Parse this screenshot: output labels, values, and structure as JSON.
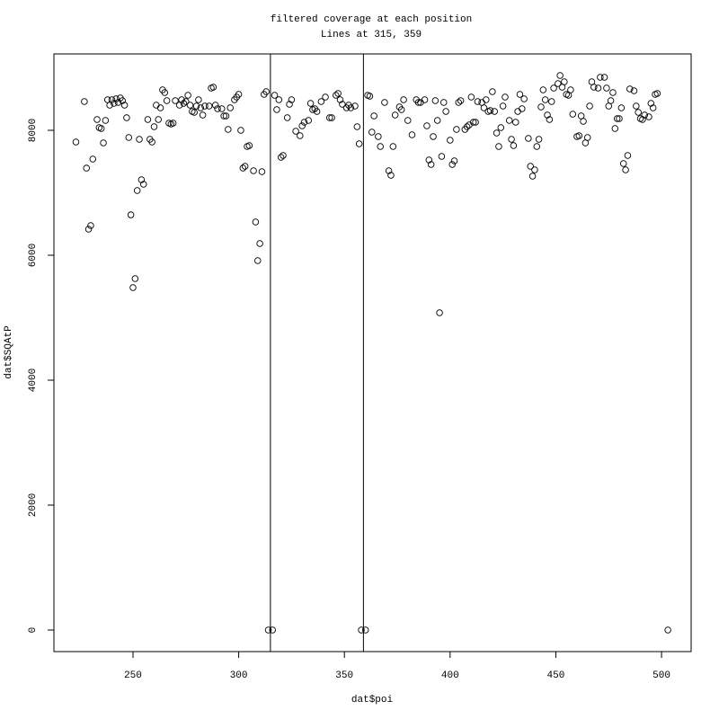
{
  "chart_data": {
    "type": "scatter",
    "title": "filtered coverage at each position",
    "subtitle": "Lines at 315, 359",
    "x_label": "dat$poi",
    "y_label": "dat$SQAtP",
    "color": "#000000",
    "vlines": [
      315,
      359
    ],
    "xlim": [
      212.6,
      514
    ],
    "ylim": [
      -345,
      9223
    ],
    "xticks": [
      250,
      300,
      350,
      400,
      450,
      500
    ],
    "yticks": [
      0,
      2000,
      4000,
      6000,
      8000
    ],
    "x": [
      223,
      227,
      228,
      229,
      230,
      231,
      233,
      234,
      235,
      236,
      237,
      238,
      239,
      240,
      241,
      242,
      243,
      244,
      245,
      246,
      247,
      248,
      249,
      250,
      251,
      252,
      253,
      254,
      255,
      257,
      258,
      259,
      260,
      261,
      262,
      263,
      264,
      265,
      266,
      267,
      268,
      269,
      270,
      272,
      273,
      274,
      275,
      276,
      277,
      278,
      279,
      280,
      281,
      282,
      283,
      284,
      286,
      287,
      288,
      289,
      290,
      292,
      293,
      294,
      295,
      296,
      298,
      299,
      300,
      301,
      302,
      303,
      304,
      305,
      307,
      308,
      309,
      310,
      311,
      312,
      313,
      314,
      316,
      317,
      318,
      319,
      320,
      321,
      323,
      324,
      325,
      327,
      329,
      330,
      331,
      333,
      334,
      335,
      336,
      337,
      339,
      341,
      343,
      344,
      346,
      347,
      348,
      349,
      351,
      352,
      353,
      355,
      356,
      357,
      358,
      360,
      361,
      362,
      363,
      364,
      366,
      367,
      369,
      371,
      372,
      373,
      374,
      376,
      377,
      378,
      380,
      382,
      384,
      385,
      386,
      388,
      389,
      390,
      391,
      392,
      393,
      394,
      395,
      396,
      397,
      398,
      400,
      401,
      402,
      403,
      404,
      405,
      407,
      408,
      409,
      410,
      411,
      412,
      413,
      415,
      416,
      417,
      418,
      419,
      420,
      421,
      422,
      423,
      424,
      425,
      426,
      428,
      429,
      430,
      431,
      432,
      433,
      434,
      435,
      437,
      438,
      439,
      440,
      441,
      442,
      443,
      444,
      445,
      446,
      447,
      448,
      449,
      451,
      452,
      453,
      454,
      455,
      456,
      457,
      458,
      460,
      461,
      462,
      463,
      464,
      465,
      466,
      467,
      468,
      470,
      471,
      473,
      474,
      475,
      476,
      477,
      478,
      479,
      480,
      481,
      482,
      483,
      484,
      485,
      487,
      488,
      489,
      490,
      491,
      492,
      494,
      495,
      496,
      497,
      498,
      503
    ],
    "values": [
      7813,
      8460,
      7395,
      6417,
      6475,
      7540,
      8173,
      8043,
      8029,
      7799,
      8158,
      8489,
      8403,
      8489,
      8432,
      8504,
      8446,
      8518,
      8475,
      8403,
      8201,
      7885,
      6647,
      5482,
      5626,
      7036,
      7856,
      7209,
      7137,
      8173,
      7856,
      7813,
      8058,
      8403,
      8173,
      8360,
      8647,
      8604,
      8475,
      8115,
      8101,
      8115,
      8475,
      8403,
      8489,
      8432,
      8460,
      8561,
      8403,
      8302,
      8288,
      8388,
      8489,
      8360,
      8245,
      8388,
      8388,
      8676,
      8691,
      8403,
      8345,
      8345,
      8230,
      8230,
      8014,
      8360,
      8489,
      8532,
      8576,
      8000,
      7396,
      7424,
      7741,
      7755,
      7353,
      6532,
      5914,
      6187,
      7338,
      8576,
      8619,
      0,
      0,
      8561,
      8331,
      8489,
      7568,
      7597,
      8201,
      8417,
      8489,
      7986,
      7914,
      8072,
      8130,
      8158,
      8432,
      8331,
      8345,
      8302,
      8460,
      8532,
      8201,
      8201,
      8561,
      8590,
      8489,
      8417,
      8360,
      8403,
      8360,
      8388,
      8058,
      7784,
      0,
      0,
      8561,
      8547,
      7971,
      8230,
      7900,
      7741,
      8446,
      7353,
      7281,
      7741,
      8245,
      8374,
      8331,
      8489,
      8158,
      7928,
      8489,
      8446,
      8446,
      8489,
      8072,
      7525,
      7453,
      7900,
      8475,
      8158,
      5079,
      7583,
      8446,
      8302,
      7842,
      7453,
      7511,
      8014,
      8446,
      8475,
      8014,
      8058,
      8086,
      8532,
      8130,
      8130,
      8460,
      8446,
      8360,
      8489,
      8302,
      8317,
      8619,
      8302,
      7957,
      7741,
      8043,
      8388,
      8532,
      8158,
      7856,
      7755,
      8130,
      8302,
      8576,
      8345,
      8504,
      7871,
      7424,
      7266,
      7367,
      7741,
      7856,
      8374,
      8647,
      8489,
      8245,
      8173,
      8460,
      8676,
      8748,
      8878,
      8691,
      8777,
      8576,
      8561,
      8647,
      8259,
      7900,
      7914,
      8230,
      8144,
      7799,
      7885,
      8388,
      8777,
      8691,
      8676,
      8849,
      8849,
      8676,
      8388,
      8475,
      8604,
      8029,
      8187,
      8187,
      8360,
      7468,
      7367,
      7597,
      8662,
      8633,
      8388,
      8288,
      8187,
      8173,
      8245,
      8216,
      8432,
      8360,
      8576,
      8590,
      0
    ]
  }
}
